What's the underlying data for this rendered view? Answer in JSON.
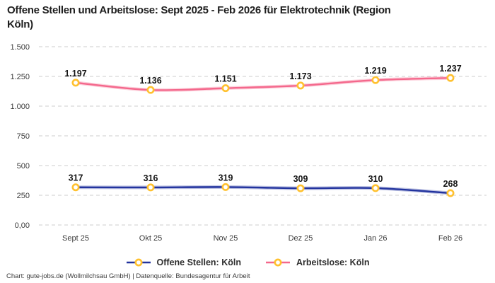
{
  "title": "Offene Stellen und Arbeitslose: Sept 2025 - Feb 2026 für Elektrotechnik (Region Köln)",
  "title_lines": [
    "Offene Stellen und Arbeitslose: Sept 2025 - Feb 2026 für Elektrotechnik (Region",
    "Köln)"
  ],
  "footer": "Chart: gute-jobs.de (Wollmilchsau GmbH) | Datenquelle: Bundesagentur für Arbeit",
  "colors": {
    "background": "#ffffff",
    "title_text": "#1e1e1e",
    "grid": "#cccccc",
    "tick_text": "#3b3b3b",
    "data_label_text": "#151515",
    "series_open_positions": "#22339e",
    "series_unemployed": "#f4688c",
    "marker_stroke": "#ffc12f",
    "marker_fill": "#ffffff"
  },
  "chart_data": {
    "type": "line",
    "title": "Offene Stellen und Arbeitslose: Sept 2025 - Feb 2026 für Elektrotechnik (Region Köln)",
    "categories": [
      "Sept 25",
      "Okt 25",
      "Nov 25",
      "Dez 25",
      "Jan 26",
      "Feb 26"
    ],
    "series": [
      {
        "name": "Offene Stellen: Köln",
        "color": "#22339e",
        "values": [
          317,
          316,
          319,
          309,
          310,
          268
        ],
        "labels": [
          "317",
          "316",
          "319",
          "309",
          "310",
          "268"
        ]
      },
      {
        "name": "Arbeitslose: Köln",
        "color": "#f4688c",
        "values": [
          1197,
          1136,
          1151,
          1173,
          1219,
          1237
        ],
        "labels": [
          "1.197",
          "1.136",
          "1.151",
          "1.173",
          "1.219",
          "1.237"
        ]
      }
    ],
    "y_ticks": [
      {
        "value": 1500,
        "label": "1.500"
      },
      {
        "value": 1250,
        "label": "1.250"
      },
      {
        "value": 1000,
        "label": "1.000"
      },
      {
        "value": 750,
        "label": "750"
      },
      {
        "value": 500,
        "label": "500"
      },
      {
        "value": 250,
        "label": "250"
      },
      {
        "value": 0,
        "label": "0,00"
      }
    ],
    "ylim": [
      0,
      1500
    ],
    "xlabel": "",
    "ylabel": "",
    "grid": "horizontal-dashed",
    "legend_position": "bottom",
    "marker": {
      "shape": "circle",
      "stroke": "#ffc12f",
      "fill": "#ffffff"
    }
  }
}
